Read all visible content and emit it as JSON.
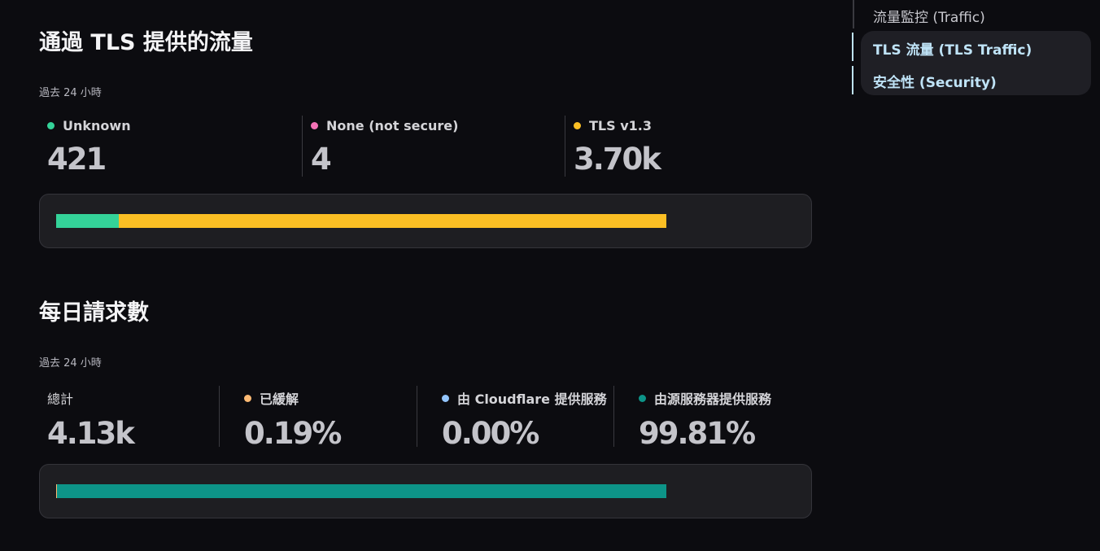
{
  "nav": {
    "items": [
      "流量監控 (Traffic)",
      "TLS 流量 (TLS Traffic)",
      "安全性 (Security)"
    ]
  },
  "sections": [
    {
      "title": "通過 TLS 提供的流量",
      "subtitle": "過去 24 小時",
      "stats": [
        {
          "label": "Unknown",
          "color": "#34d399",
          "value": 421,
          "value_label": "421"
        },
        {
          "label": "None (not secure)",
          "color": "#f472b6",
          "value": 4,
          "value_label": "4"
        },
        {
          "label": "TLS v1.3",
          "color": "#fbbf24",
          "value": 3700,
          "value_label": "3.70k"
        }
      ]
    },
    {
      "title": "每日請求數",
      "subtitle": "過去 24 小時",
      "total_label": "總計",
      "total_value": "4.13k",
      "stats": [
        {
          "label": "已緩解",
          "color": "#fdba74",
          "value": 0.19,
          "value_label": "0.19%"
        },
        {
          "label": "由 Cloudflare 提供服務",
          "color": "#93c5fd",
          "value": 0,
          "value_label": "0.00%"
        },
        {
          "label": "由源服務器提供服務",
          "color": "#0d9488",
          "value": 99.81,
          "value_label": "99.81%"
        }
      ]
    }
  ]
}
